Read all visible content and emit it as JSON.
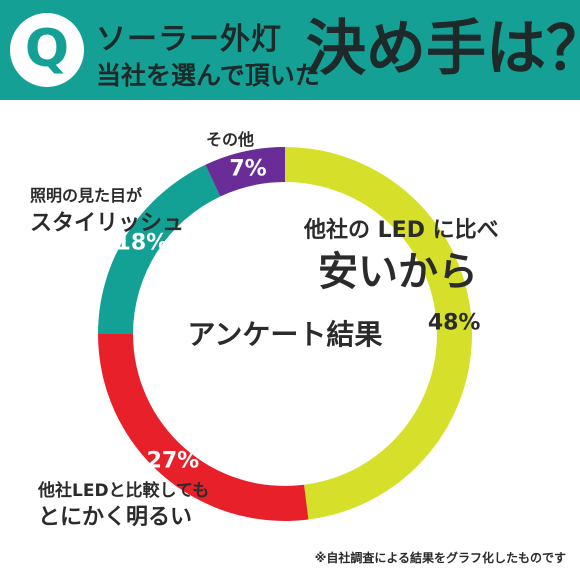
{
  "header": {
    "q_letter": "Q",
    "line1": "ソーラー外灯",
    "line2": "当社を選んで頂いた",
    "big": "決め手は？",
    "colors": {
      "band": "#14a095",
      "text": "#1e2a2a"
    }
  },
  "chart_data": {
    "type": "pie",
    "style": "donut",
    "title": "アンケート結果",
    "start_angle_deg": 0,
    "direction": "clockwise",
    "slices": [
      {
        "line1": "他社の LED に比べ",
        "line2": "安いから",
        "value": 48,
        "value_label": "48%",
        "color": "#d6e02a",
        "value_text_color": "#2b2b2b"
      },
      {
        "line1": "他社LEDと比較しても",
        "line2": "とにかく明るい",
        "value": 27,
        "value_label": "27%",
        "color": "#e8202a",
        "value_text_color": "#ffffff"
      },
      {
        "line1": "照明の見た目が",
        "line2": "スタイリッシュ",
        "value": 18,
        "value_label": "18%",
        "color": "#13a095",
        "value_text_color": "#ffffff"
      },
      {
        "line1": "",
        "line2": "その他",
        "value": 7,
        "value_label": "7%",
        "color": "#6a2d97",
        "value_text_color": "#ffffff"
      }
    ],
    "footnote": "※自社調査による結果をグラフ化したものです"
  }
}
